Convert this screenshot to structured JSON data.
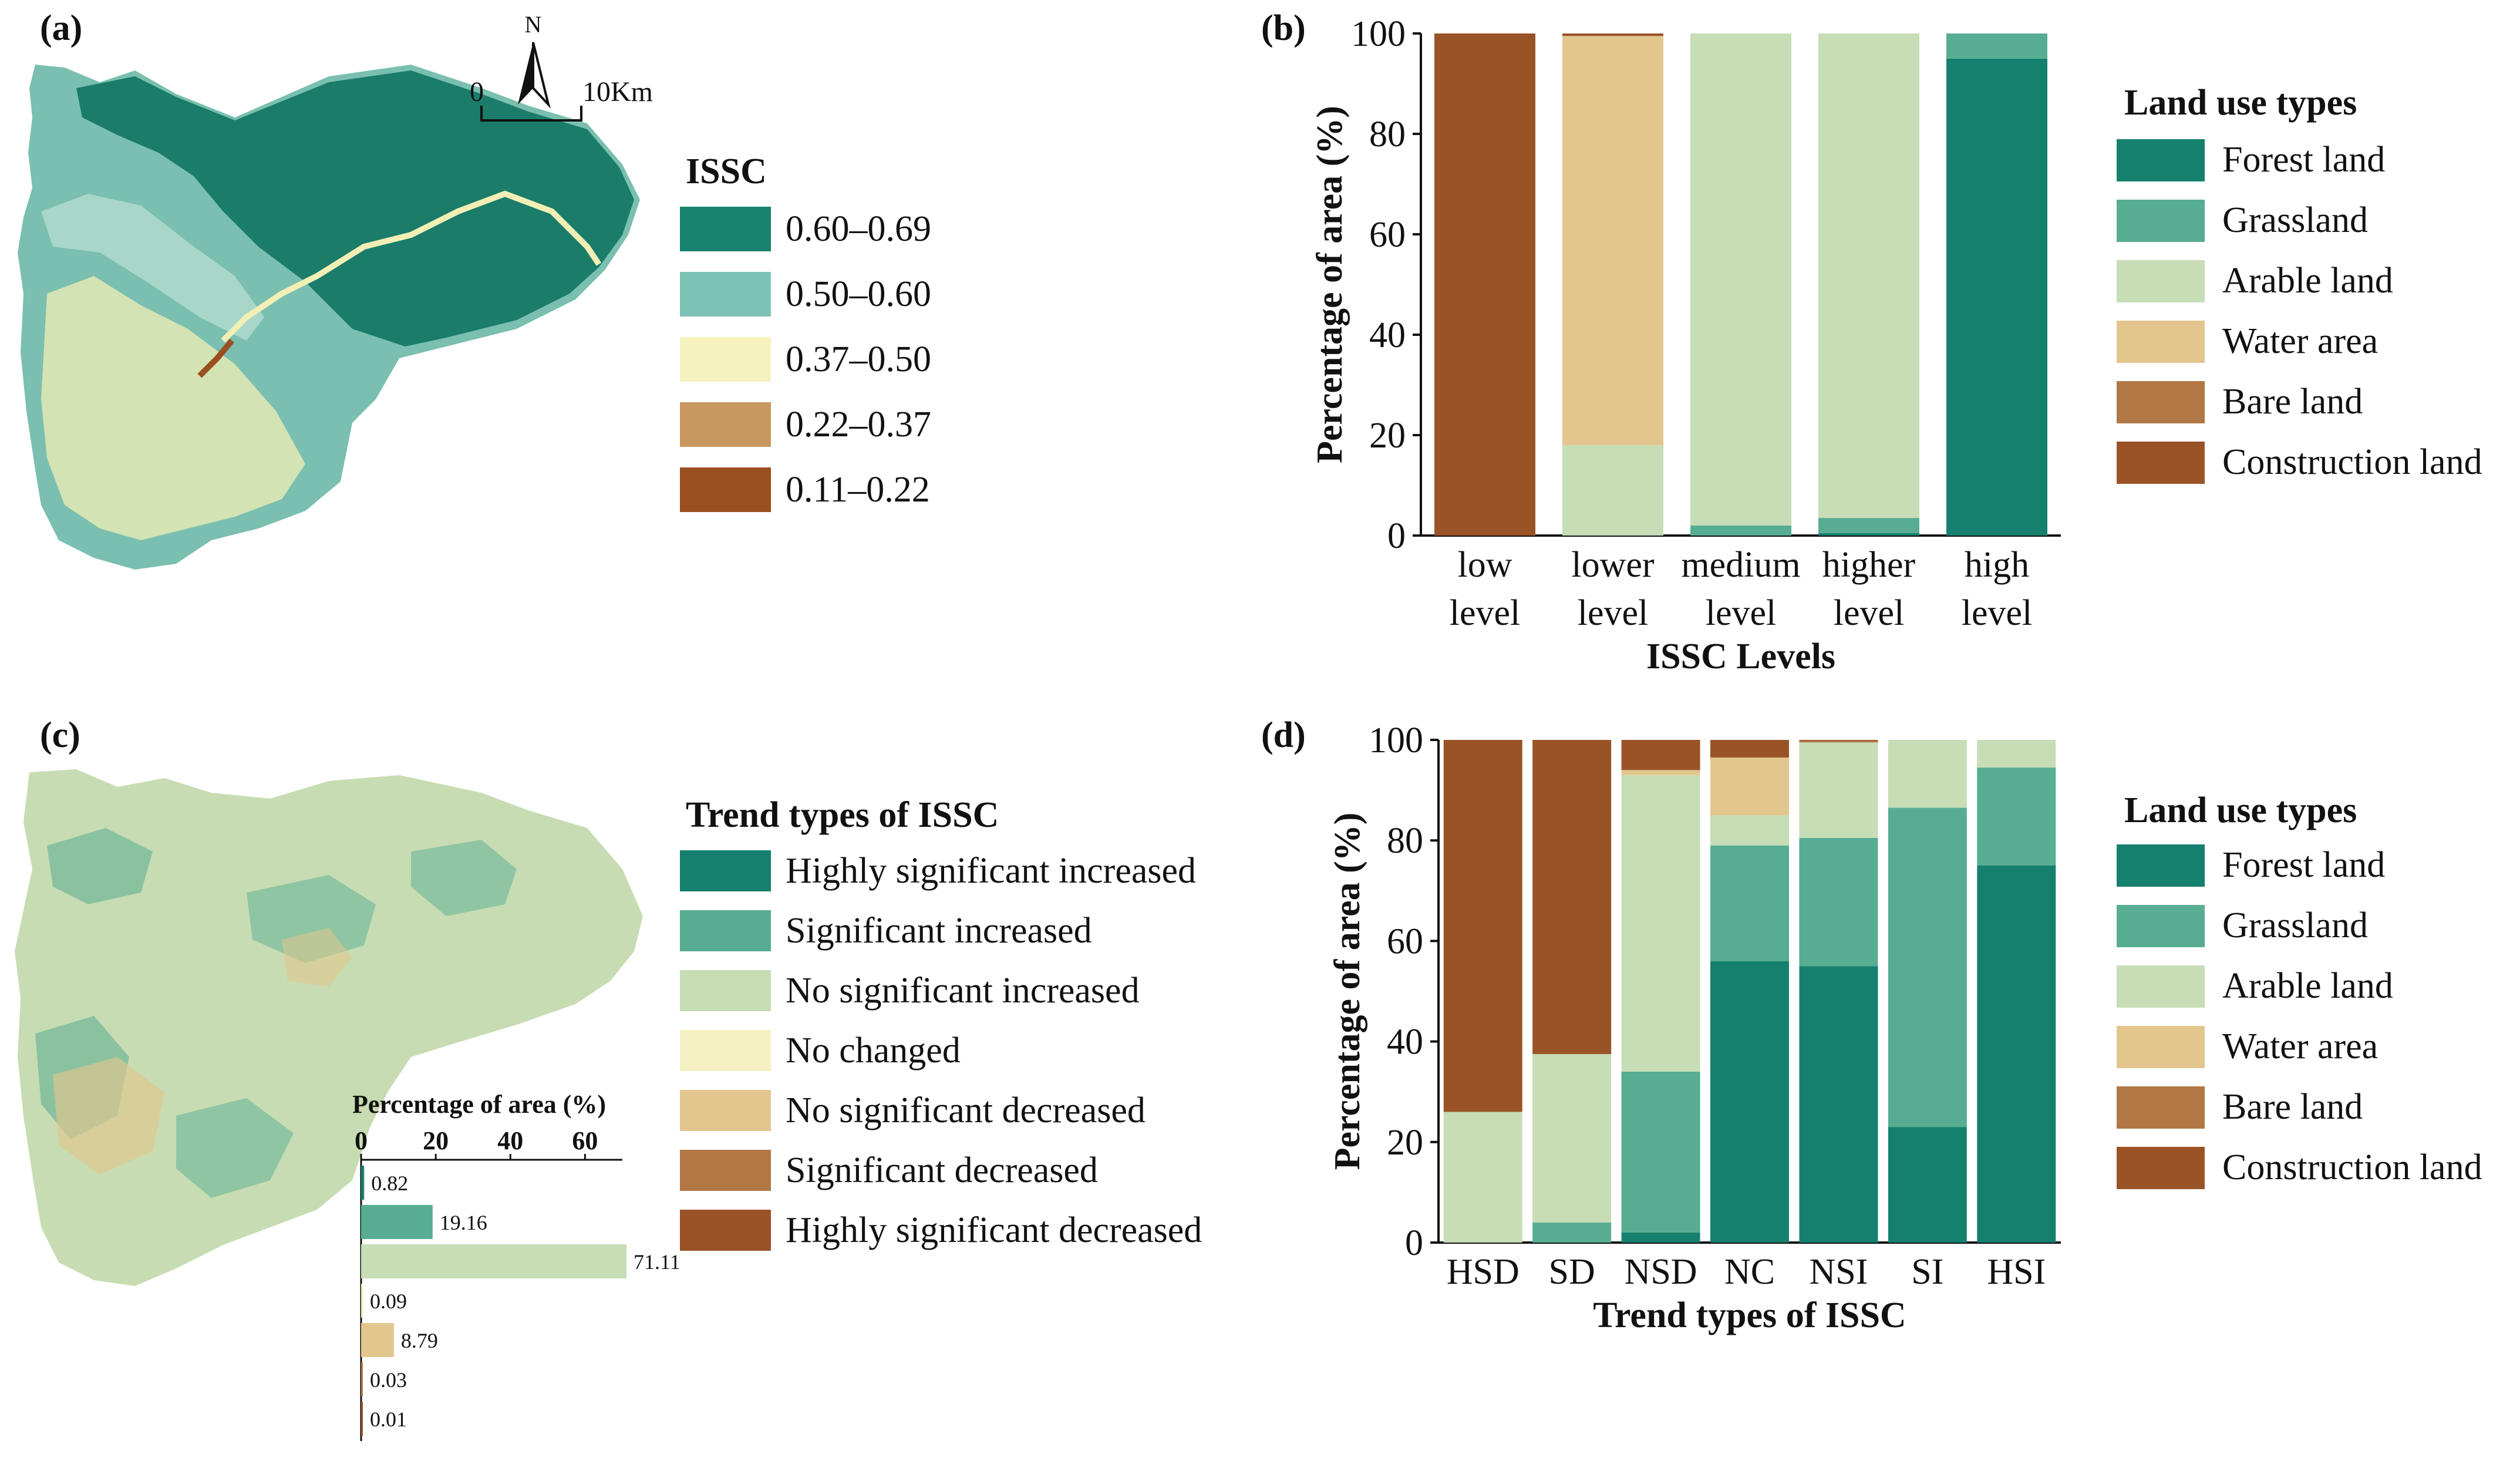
{
  "colors": {
    "forest": "#15806d",
    "grassland": "#57ad92",
    "arable": "#c6ddb6",
    "water": "#e2c68d",
    "bare": "#b17744",
    "construction": "#9a5327",
    "map_c_base": "#c7dcb2",
    "map_a_dark": "#1a7c69",
    "map_a_mid": "#7abfb0",
    "map_a_light": "#f2efb6"
  },
  "panel_a": {
    "label": "(a)",
    "north": "N",
    "scale_start": "0",
    "scale_end": "10Km",
    "legend_title": "ISSC",
    "legend": [
      {
        "label": "0.60–0.69",
        "color": "#17826e"
      },
      {
        "label": "0.50–0.60",
        "color": "#7cc3b5"
      },
      {
        "label": "0.37–0.50",
        "color": "#f6f2bd"
      },
      {
        "label": "0.22–0.37",
        "color": "#c8975f"
      },
      {
        "label": "0.11–0.22",
        "color": "#9a4f21"
      }
    ]
  },
  "panel_b": {
    "label": "(b)",
    "legend_title": "Land use types",
    "legend": [
      "Forest land",
      "Grassland",
      "Arable land",
      "Water area",
      "Bare land",
      "Construction land"
    ]
  },
  "panel_c": {
    "label": "(c)",
    "legend_title": "Trend types of ISSC",
    "legend": [
      {
        "label": "Highly significant increased",
        "color": "#15806d"
      },
      {
        "label": "Significant increased",
        "color": "#57ad92"
      },
      {
        "label": "No significant increased",
        "color": "#c6ddb6"
      },
      {
        "label": "No changed",
        "color": "#f6f1c2"
      },
      {
        "label": "No significant decreased",
        "color": "#e2c68d"
      },
      {
        "label": "Significant decreased",
        "color": "#b17744"
      },
      {
        "label": "Highly significant decreased",
        "color": "#9a5327"
      }
    ],
    "inset": {
      "title": "Percentage of area (%)",
      "ticks": [
        "0",
        "20",
        "40",
        "60"
      ],
      "xlim": [
        0,
        70
      ],
      "values": [
        0.82,
        19.16,
        71.11,
        0.09,
        8.79,
        0.03,
        0.01
      ],
      "value_labels": [
        "0.82",
        "19.16",
        "71.11",
        "0.09",
        "8.79",
        "0.03",
        "0.01"
      ],
      "colors": [
        "#15806d",
        "#57ad92",
        "#c6ddb6",
        "#f6f1c2",
        "#e2c68d",
        "#b17744",
        "#9a5327"
      ]
    }
  },
  "panel_d": {
    "label": "(d)",
    "legend_title": "Land use types",
    "legend": [
      "Forest land",
      "Grassland",
      "Arable land",
      "Water area",
      "Bare land",
      "Construction land"
    ]
  },
  "chart_data": [
    {
      "type": "bar",
      "stacked": true,
      "title": "",
      "xlabel": "ISSC Levels",
      "ylabel": "Percentage of area (%)",
      "ylim": [
        0,
        100
      ],
      "yticks": [
        "0",
        "20",
        "40",
        "60",
        "80",
        "100"
      ],
      "categories": [
        [
          "low",
          "level"
        ],
        [
          "lower",
          "level"
        ],
        [
          "medium",
          "level"
        ],
        [
          "higher",
          "level"
        ],
        [
          "high",
          "level"
        ]
      ],
      "series": [
        {
          "name": "Forest land",
          "values": [
            0,
            0,
            0,
            0.5,
            95
          ]
        },
        {
          "name": "Grassland",
          "values": [
            0,
            0,
            2,
            3,
            5
          ]
        },
        {
          "name": "Arable land",
          "values": [
            0,
            18,
            98,
            96.5,
            0
          ]
        },
        {
          "name": "Water area",
          "values": [
            0,
            81.5,
            0,
            0,
            0
          ]
        },
        {
          "name": "Bare land",
          "values": [
            0,
            0,
            0,
            0,
            0
          ]
        },
        {
          "name": "Construction land",
          "values": [
            100,
            0.5,
            0,
            0,
            0
          ]
        }
      ]
    },
    {
      "type": "bar",
      "stacked": true,
      "title": "",
      "xlabel": "Trend types of ISSC",
      "ylabel": "Percentage of area (%)",
      "ylim": [
        0,
        100
      ],
      "yticks": [
        "0",
        "20",
        "40",
        "60",
        "80",
        "100"
      ],
      "categories": [
        [
          "HSD"
        ],
        [
          "SD"
        ],
        [
          "NSD"
        ],
        [
          "NC"
        ],
        [
          "NSI"
        ],
        [
          "SI"
        ],
        [
          "HSI"
        ]
      ],
      "series": [
        {
          "name": "Forest land",
          "values": [
            0,
            0,
            2,
            56,
            55,
            23,
            75
          ]
        },
        {
          "name": "Grassland",
          "values": [
            0,
            4,
            32,
            23,
            25.5,
            63.5,
            19.5
          ]
        },
        {
          "name": "Arable land",
          "values": [
            26,
            33.5,
            59,
            6,
            19,
            13.5,
            5.5
          ]
        },
        {
          "name": "Water area",
          "values": [
            0,
            0,
            1,
            11.5,
            0,
            0,
            0
          ]
        },
        {
          "name": "Bare land",
          "values": [
            0,
            0,
            0,
            0,
            0.3,
            0,
            0
          ]
        },
        {
          "name": "Construction land",
          "values": [
            74,
            62.5,
            6,
            3.5,
            0.2,
            0,
            0
          ]
        }
      ]
    }
  ]
}
